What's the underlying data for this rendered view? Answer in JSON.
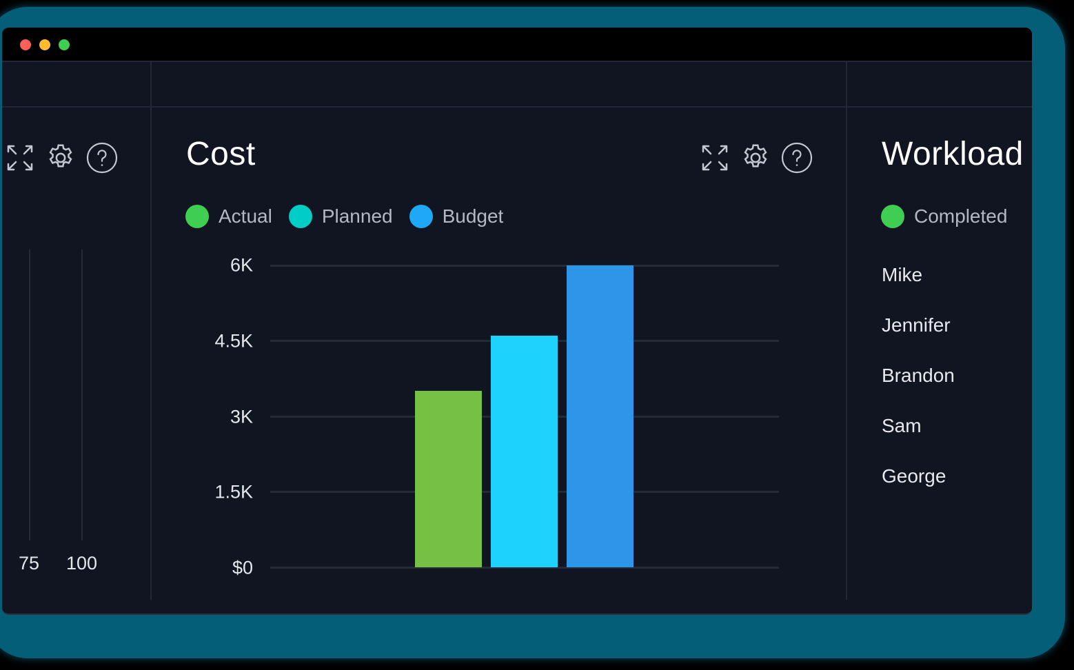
{
  "window": {
    "controls": [
      {
        "name": "close",
        "color": "#fe5f57"
      },
      {
        "name": "minimize",
        "color": "#febc2e"
      },
      {
        "name": "maximize",
        "color": "#3fce52"
      }
    ]
  },
  "left_panel": {
    "icons": [
      "expand-icon",
      "gear-icon",
      "help-icon"
    ],
    "axis_ticks": [
      "75",
      "100"
    ]
  },
  "cost_panel": {
    "title": "Cost",
    "icons": [
      "expand-icon",
      "gear-icon",
      "help-icon"
    ],
    "legend": [
      {
        "label": "Actual",
        "color": "#3fce52"
      },
      {
        "label": "Planned",
        "color": "#00cdc6"
      },
      {
        "label": "Budget",
        "color": "#1ea8f7"
      }
    ],
    "y_ticks": [
      "6K",
      "4.5K",
      "3K",
      "1.5K",
      "$0"
    ]
  },
  "workload_panel": {
    "title": "Workload",
    "legend": [
      {
        "label": "Completed",
        "color": "#3fce52"
      }
    ],
    "names": [
      "Mike",
      "Jennifer",
      "Brandon",
      "Sam",
      "George"
    ]
  },
  "chart_data": {
    "type": "bar",
    "title": "Cost",
    "categories": [
      "Actual",
      "Planned",
      "Budget"
    ],
    "values": [
      3500,
      4600,
      6000
    ],
    "colors": [
      "#76c043",
      "#1ed2fe",
      "#2d96e8"
    ],
    "xlabel": "",
    "ylabel": "",
    "ylim": [
      0,
      6000
    ],
    "y_tick_labels": [
      "$0",
      "1.5K",
      "3K",
      "4.5K",
      "6K"
    ],
    "grid": true,
    "legend_position": "top-left"
  }
}
